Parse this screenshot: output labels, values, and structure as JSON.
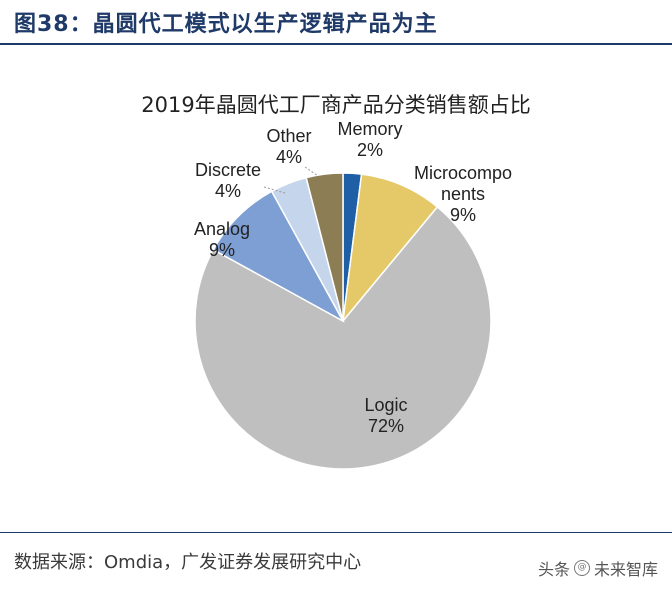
{
  "figure_title": "图38：晶圆代工模式以生产逻辑产品为主",
  "source_text": "数据来源：Omdia，广发证券发展研究中心",
  "watermark": {
    "prefix": "头条",
    "icon": "at-icon",
    "name": "未来智库"
  },
  "colors": {
    "Memory": "#1f5fa6",
    "Microcomponents": "#e5c867",
    "Logic": "#bfbfbf",
    "Analog": "#7e9fd3",
    "Discrete": "#c4d5ec",
    "Other": "#8d7d55",
    "title_blue": "#1f3a68"
  },
  "chart_data": {
    "type": "pie",
    "title": "2019年晶圆代工厂商产品分类销售额占比",
    "start_angle_deg": 0,
    "direction": "clockwise",
    "slices": [
      {
        "label": "Memory",
        "label_lines": [
          "Memory"
        ],
        "value": 2,
        "value_label": "2%"
      },
      {
        "label": "Microcomponents",
        "label_lines": [
          "Microcompo",
          "nents"
        ],
        "value": 9,
        "value_label": "9%"
      },
      {
        "label": "Logic",
        "label_lines": [
          "Logic"
        ],
        "value": 72,
        "value_label": "72%"
      },
      {
        "label": "Analog",
        "label_lines": [
          "Analog"
        ],
        "value": 9,
        "value_label": "9%"
      },
      {
        "label": "Discrete",
        "label_lines": [
          "Discrete"
        ],
        "value": 4,
        "value_label": "4%"
      },
      {
        "label": "Other",
        "label_lines": [
          "Other"
        ],
        "value": 4,
        "value_label": "4%"
      }
    ]
  }
}
